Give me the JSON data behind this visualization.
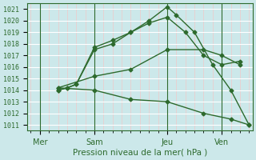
{
  "xlabel": "Pression niveau de la mer( hPa )",
  "bg_color": "#cce8ea",
  "line_color": "#2d6a2d",
  "grid_major_color": "#ffffff",
  "grid_minor_color": "#f0c8c8",
  "ylim": [
    1010.5,
    1021.5
  ],
  "xlim": [
    -0.2,
    12.2
  ],
  "yticks": [
    1011,
    1012,
    1013,
    1014,
    1015,
    1016,
    1017,
    1018,
    1019,
    1020,
    1021
  ],
  "xtick_labels": [
    "Mer",
    "Sam",
    "Jeu",
    "Ven"
  ],
  "xtick_positions": [
    0.5,
    3.5,
    7.5,
    10.5
  ],
  "vline_positions": [
    0.5,
    3.5,
    7.5,
    10.5
  ],
  "series": [
    {
      "x": [
        1.5,
        2.0,
        2.5,
        3.5,
        4.5,
        5.5,
        6.5,
        7.5,
        8.0,
        9.0,
        10.0,
        11.0,
        12.0
      ],
      "y": [
        1014.0,
        1014.2,
        1014.5,
        1017.7,
        1018.3,
        1019.0,
        1020.0,
        1021.2,
        1020.5,
        1019.0,
        1016.2,
        1014.0,
        1011.0
      ],
      "style": "-",
      "marker": "D",
      "markersize": 2.5,
      "linewidth": 1.0
    },
    {
      "x": [
        1.5,
        2.0,
        2.5,
        3.5,
        4.5,
        5.5,
        6.5,
        7.5,
        8.5,
        9.5,
        10.5,
        11.5
      ],
      "y": [
        1014.0,
        1014.2,
        1014.5,
        1017.5,
        1018.0,
        1019.0,
        1019.8,
        1020.3,
        1019.0,
        1017.0,
        1016.2,
        1016.5
      ],
      "style": "-",
      "marker": "D",
      "markersize": 2.5,
      "linewidth": 1.0
    },
    {
      "x": [
        1.5,
        3.5,
        5.5,
        7.5,
        9.5,
        10.5,
        11.5
      ],
      "y": [
        1014.2,
        1015.2,
        1015.8,
        1017.5,
        1017.5,
        1017.0,
        1016.2
      ],
      "style": "-",
      "marker": "D",
      "markersize": 2.5,
      "linewidth": 1.0
    },
    {
      "x": [
        1.5,
        3.5,
        5.5,
        7.5,
        9.5,
        11.0,
        12.0
      ],
      "y": [
        1014.2,
        1014.0,
        1013.2,
        1013.0,
        1012.0,
        1011.5,
        1011.0
      ],
      "style": "-",
      "marker": "D",
      "markersize": 2.5,
      "linewidth": 1.0
    }
  ]
}
